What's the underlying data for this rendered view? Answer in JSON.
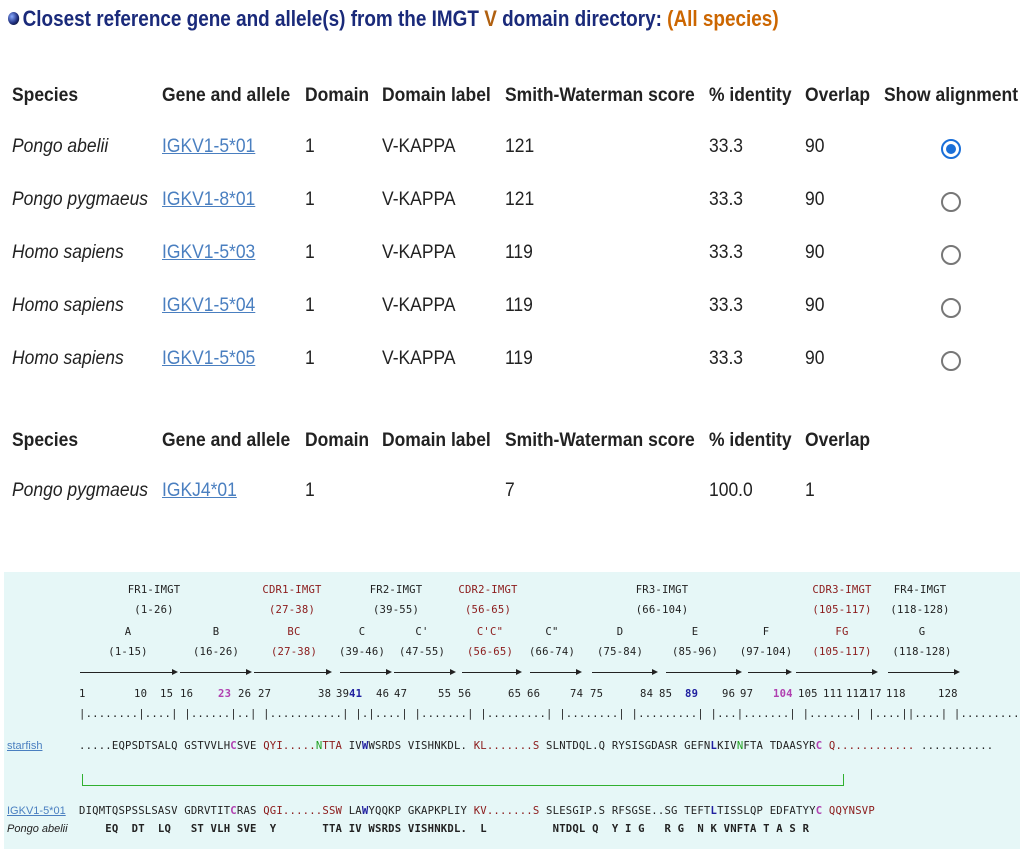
{
  "heading": {
    "prefix": "Closest reference gene and allele(s) from the IMGT",
    "v_letter": "V",
    "suffix": "domain directory:",
    "species_scope": "(All species)"
  },
  "table_v": {
    "headers": [
      "Species",
      "Gene and allele",
      "Domain",
      "Domain label",
      "Smith-Waterman score",
      "% identity",
      "Overlap",
      "Show alignment"
    ],
    "rows": [
      {
        "species": "Pongo abelii",
        "gene": "IGKV1-5*01",
        "domain": "1",
        "label": "V-KAPPA",
        "score": "121",
        "identity": "33.3",
        "overlap": "90",
        "selected": true
      },
      {
        "species": "Pongo pygmaeus",
        "gene": "IGKV1-8*01",
        "domain": "1",
        "label": "V-KAPPA",
        "score": "121",
        "identity": "33.3",
        "overlap": "90",
        "selected": false
      },
      {
        "species": "Homo sapiens",
        "gene": "IGKV1-5*03",
        "domain": "1",
        "label": "V-KAPPA",
        "score": "119",
        "identity": "33.3",
        "overlap": "90",
        "selected": false
      },
      {
        "species": "Homo sapiens",
        "gene": "IGKV1-5*04",
        "domain": "1",
        "label": "V-KAPPA",
        "score": "119",
        "identity": "33.3",
        "overlap": "90",
        "selected": false
      },
      {
        "species": "Homo sapiens",
        "gene": "IGKV1-5*05",
        "domain": "1",
        "label": "V-KAPPA",
        "score": "119",
        "identity": "33.3",
        "overlap": "90",
        "selected": false
      }
    ]
  },
  "table_j": {
    "headers": [
      "Species",
      "Gene and allele",
      "Domain",
      "Domain label",
      "Smith-Waterman score",
      "% identity",
      "Overlap"
    ],
    "rows": [
      {
        "species": "Pongo pygmaeus",
        "gene": "IGKJ4*01",
        "domain": "1",
        "label": "",
        "score": "7",
        "identity": "100.0",
        "overlap": "1"
      }
    ]
  },
  "alignment": {
    "regions": [
      {
        "name": "FR1-IMGT",
        "range": "(1-26)",
        "type": "fr"
      },
      {
        "name": "CDR1-IMGT",
        "range": "(27-38)",
        "type": "cdr"
      },
      {
        "name": "FR2-IMGT",
        "range": "(39-55)",
        "type": "fr"
      },
      {
        "name": "CDR2-IMGT",
        "range": "(56-65)",
        "type": "cdr"
      },
      {
        "name": "FR3-IMGT",
        "range": "(66-104)",
        "type": "fr"
      },
      {
        "name": "CDR3-IMGT",
        "range": "(105-117)",
        "type": "cdr"
      },
      {
        "name": "FR4-IMGT",
        "range": "(118-128)",
        "type": "fr"
      }
    ],
    "strands": [
      {
        "name": "A",
        "range": "(1-15)",
        "type": "fr"
      },
      {
        "name": "B",
        "range": "(16-26)",
        "type": "fr"
      },
      {
        "name": "BC",
        "range": "(27-38)",
        "type": "cdr"
      },
      {
        "name": "C",
        "range": "(39-46)",
        "type": "fr"
      },
      {
        "name": "C'",
        "range": "(47-55)",
        "type": "fr"
      },
      {
        "name": "C'C\"",
        "range": "(56-65)",
        "type": "cdr"
      },
      {
        "name": "C\"",
        "range": "(66-74)",
        "type": "fr"
      },
      {
        "name": "D",
        "range": "(75-84)",
        "type": "fr"
      },
      {
        "name": "E",
        "range": "(85-96)",
        "type": "fr"
      },
      {
        "name": "F",
        "range": "(97-104)",
        "type": "fr"
      },
      {
        "name": "FG",
        "range": "(105-117)",
        "type": "cdr"
      },
      {
        "name": "G",
        "range": "(118-128)",
        "type": "fr"
      }
    ],
    "numbering": [
      {
        "text": "1"
      },
      {
        "text": "10"
      },
      {
        "text": "15"
      },
      {
        "text": "16"
      },
      {
        "text": "23",
        "style": "mag"
      },
      {
        "text": "26"
      },
      {
        "text": "27"
      },
      {
        "text": "38"
      },
      {
        "text": "39"
      },
      {
        "text": "41",
        "style": "blue"
      },
      {
        "text": "46"
      },
      {
        "text": "47"
      },
      {
        "text": "55"
      },
      {
        "text": "56"
      },
      {
        "text": "65"
      },
      {
        "text": "66"
      },
      {
        "text": "74"
      },
      {
        "text": "75"
      },
      {
        "text": "84"
      },
      {
        "text": "85"
      },
      {
        "text": "89",
        "style": "blue"
      },
      {
        "text": "96"
      },
      {
        "text": "97"
      },
      {
        "text": "104",
        "style": "mag"
      },
      {
        "text": "105"
      },
      {
        "text": "111"
      },
      {
        "text": "112"
      },
      {
        "text": "117"
      },
      {
        "text": "118"
      },
      {
        "text": "128"
      }
    ],
    "ruler": "|........|....| |......|..| |...........| |.|....| |.......| |.........| |........| |.........| |...|.......| |.......| |....||....| |.........|",
    "query_name": "starfish",
    "query_seq": [
      {
        "t": ".....EQPSDTSALQ GSTVVLH"
      },
      {
        "t": "C",
        "s": "mag"
      },
      {
        "t": "SVE "
      },
      {
        "t": "QYI.....",
        "s": "red"
      },
      {
        "t": "N",
        "s": "grn"
      },
      {
        "t": "TTA",
        "s": "red"
      },
      {
        "t": " IV"
      },
      {
        "t": "W",
        "s": "blue"
      },
      {
        "t": "WSRDS VISHNKDL. "
      },
      {
        "t": "KL.......S",
        "s": "red"
      },
      {
        "t": " SLNTDQL.Q RYSISGDASR GEFN"
      },
      {
        "t": "L",
        "s": "blue"
      },
      {
        "t": "KIV"
      },
      {
        "t": "N",
        "s": "grn"
      },
      {
        "t": "FTA TDAASYR"
      },
      {
        "t": "C",
        "s": "mag"
      },
      {
        "t": " "
      },
      {
        "t": "Q............",
        "s": "red"
      },
      {
        "t": " ..........."
      }
    ],
    "ref_name": "IGKV1-5*01",
    "ref_species": "Pongo abelii",
    "ref_seq": [
      {
        "t": "DIQMTQSPSSLSASV GDRVTIT"
      },
      {
        "t": "C",
        "s": "mag"
      },
      {
        "t": "RAS "
      },
      {
        "t": "QGI......SSW",
        "s": "red"
      },
      {
        "t": " LA"
      },
      {
        "t": "W",
        "s": "blue"
      },
      {
        "t": "YQQKP GKAPKPLIY "
      },
      {
        "t": "KV.......S",
        "s": "red"
      },
      {
        "t": " SLESGIP.S RFSGSE..SG TEFT"
      },
      {
        "t": "L",
        "s": "blue"
      },
      {
        "t": "TISSLQP EDFATYY"
      },
      {
        "t": "C",
        "s": "mag"
      },
      {
        "t": " "
      },
      {
        "t": "QQYNSVP",
        "s": "red"
      }
    ],
    "diff_seq": "    EQ  DT  LQ   ST VLH SVE  Y       TTA IV WSRDS VISHNKDL.  L          NTDQL Q  Y I G   R G  N K VNFTA T A S R"
  }
}
